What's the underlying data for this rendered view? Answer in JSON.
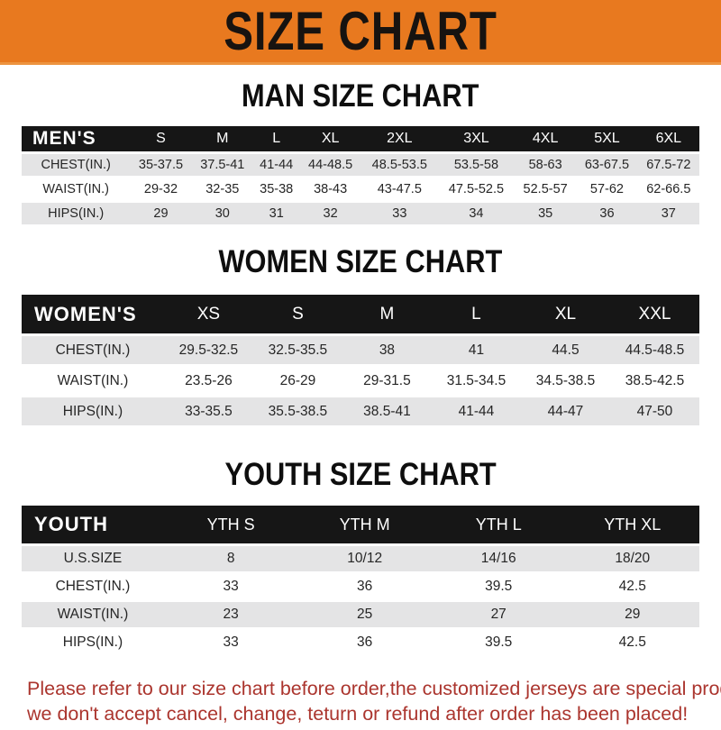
{
  "banner": {
    "title": "SIZE CHART"
  },
  "colors": {
    "banner_bg": "#E8791F",
    "table_header_bg": "#161616",
    "row_gray": "#E4E4E5",
    "notice_red": "#AB352E"
  },
  "sections": [
    {
      "heading": "MAN SIZE CHART",
      "table": {
        "label": "MEN'S",
        "columns": [
          "S",
          "M",
          "L",
          "XL",
          "2XL",
          "3XL",
          "4XL",
          "5XL",
          "6XL"
        ],
        "rows": [
          {
            "label": "CHEST(IN.)",
            "values": [
              "35-37.5",
              "37.5-41",
              "41-44",
              "44-48.5",
              "48.5-53.5",
              "53.5-58",
              "58-63",
              "63-67.5",
              "67.5-72"
            ]
          },
          {
            "label": "WAIST(IN.)",
            "values": [
              "29-32",
              "32-35",
              "35-38",
              "38-43",
              "43-47.5",
              "47.5-52.5",
              "52.5-57",
              "57-62",
              "62-66.5"
            ]
          },
          {
            "label": "HIPS(IN.)",
            "values": [
              "29",
              "30",
              "31",
              "32",
              "33",
              "34",
              "35",
              "36",
              "37"
            ]
          }
        ]
      }
    },
    {
      "heading": "WOMEN SIZE CHART",
      "table": {
        "label": "WOMEN'S",
        "columns": [
          "XS",
          "S",
          "M",
          "L",
          "XL",
          "XXL"
        ],
        "rows": [
          {
            "label": "CHEST(IN.)",
            "values": [
              "29.5-32.5",
              "32.5-35.5",
              "38",
              "41",
              "44.5",
              "44.5-48.5"
            ]
          },
          {
            "label": "WAIST(IN.)",
            "values": [
              "23.5-26",
              "26-29",
              "29-31.5",
              "31.5-34.5",
              "34.5-38.5",
              "38.5-42.5"
            ]
          },
          {
            "label": "HIPS(IN.)",
            "values": [
              "33-35.5",
              "35.5-38.5",
              "38.5-41",
              "41-44",
              "44-47",
              "47-50"
            ]
          }
        ]
      }
    },
    {
      "heading": "YOUTH SIZE CHART",
      "table": {
        "label": "YOUTH",
        "columns": [
          "YTH S",
          "YTH M",
          "YTH L",
          "YTH XL"
        ],
        "rows": [
          {
            "label": "U.S.SIZE",
            "values": [
              "8",
              "10/12",
              "14/16",
              "18/20"
            ]
          },
          {
            "label": "CHEST(IN.)",
            "values": [
              "33",
              "36",
              "39.5",
              "42.5"
            ]
          },
          {
            "label": "WAIST(IN.)",
            "values": [
              "23",
              "25",
              "27",
              "29"
            ]
          },
          {
            "label": "HIPS(IN.)",
            "values": [
              "33",
              "36",
              "39.5",
              "42.5"
            ]
          }
        ]
      }
    }
  ],
  "footer": {
    "line1": "Please refer to our size chart before order,the customized jerseys are special products,",
    "line2": "we don't accept cancel, change, teturn or refund after order has been placed!"
  }
}
